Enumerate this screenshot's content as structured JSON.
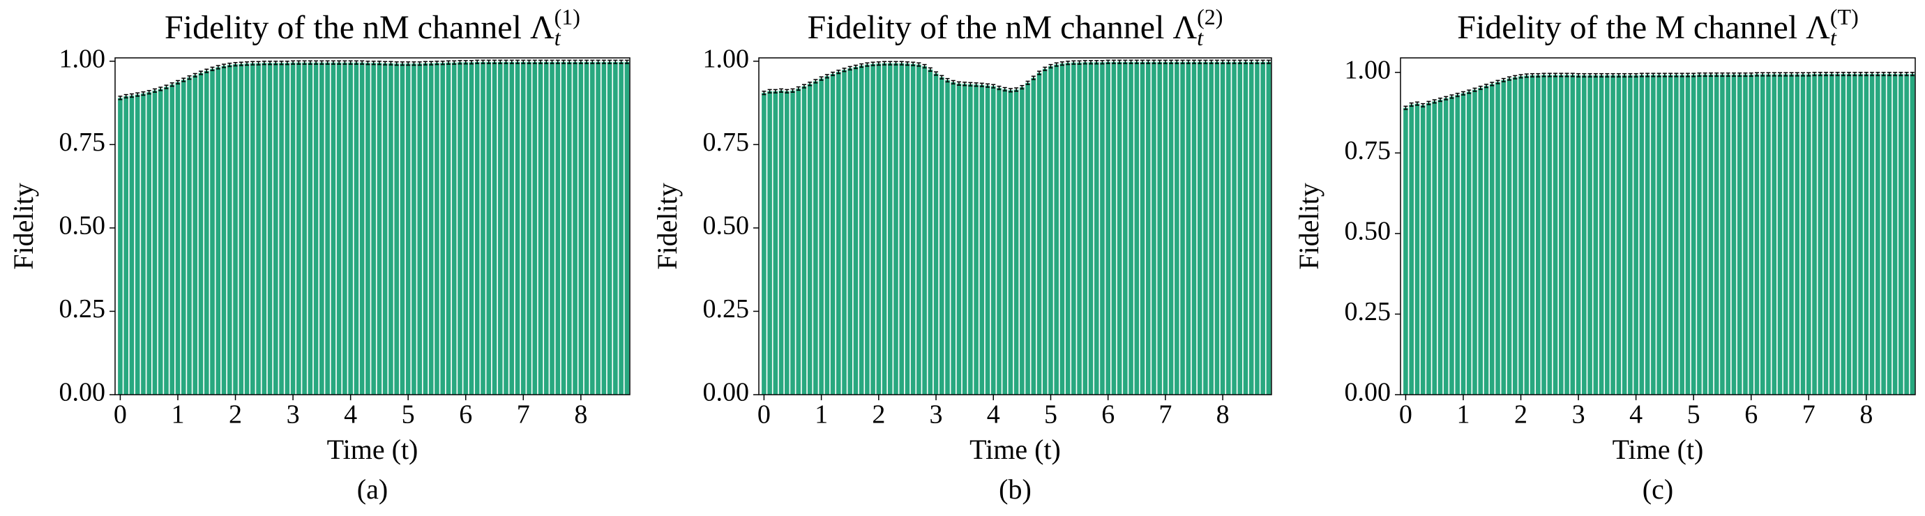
{
  "chart_data": [
    {
      "type": "bar",
      "title": "Fidelity of the nM channel ",
      "title_symbol": "Λ",
      "title_sub": "t",
      "title_sup": "(1)",
      "x_label": "Time (t)",
      "y_label": "Fidelity",
      "caption": "(a)",
      "color": "#28a87f",
      "error": 0.005,
      "xlim": [
        -0.09,
        8.85
      ],
      "xticks": [
        0,
        1,
        2,
        3,
        4,
        5,
        6,
        7,
        8
      ],
      "ylim": [
        0,
        1.01
      ],
      "yticks": [
        {
          "value": 0,
          "label": "0.00"
        },
        {
          "value": 0.25,
          "label": "0.25"
        },
        {
          "value": 0.5,
          "label": "0.50"
        },
        {
          "value": 0.75,
          "label": "0.75"
        },
        {
          "value": 1,
          "label": "1.00"
        }
      ],
      "x": [
        0,
        0.1,
        0.2,
        0.3,
        0.4,
        0.5,
        0.6,
        0.7,
        0.8,
        0.9,
        1,
        1.1,
        1.2,
        1.3,
        1.4,
        1.5,
        1.6,
        1.7,
        1.8,
        1.9,
        2,
        2.1,
        2.2,
        2.3,
        2.4,
        2.5,
        2.6,
        2.7,
        2.8,
        2.9,
        3,
        3.1,
        3.2,
        3.3,
        3.4,
        3.5,
        3.6,
        3.7,
        3.8,
        3.9,
        4,
        4.1,
        4.2,
        4.3,
        4.4,
        4.5,
        4.6,
        4.7,
        4.8,
        4.9,
        5,
        5.1,
        5.2,
        5.3,
        5.4,
        5.5,
        5.6,
        5.7,
        5.8,
        5.9,
        6,
        6.1,
        6.2,
        6.3,
        6.4,
        6.5,
        6.6,
        6.7,
        6.8,
        6.9,
        7,
        7.1,
        7.2,
        7.3,
        7.4,
        7.5,
        7.6,
        7.7,
        7.8,
        7.9,
        8,
        8.1,
        8.2,
        8.3,
        8.4,
        8.5,
        8.6,
        8.7,
        8.8
      ],
      "values": [
        0.89,
        0.895,
        0.897,
        0.9,
        0.903,
        0.907,
        0.912,
        0.917,
        0.923,
        0.93,
        0.937,
        0.944,
        0.951,
        0.958,
        0.965,
        0.971,
        0.977,
        0.982,
        0.986,
        0.989,
        0.991,
        0.992,
        0.993,
        0.994,
        0.994,
        0.995,
        0.995,
        0.995,
        0.995,
        0.995,
        0.996,
        0.996,
        0.996,
        0.996,
        0.996,
        0.996,
        0.996,
        0.996,
        0.996,
        0.996,
        0.996,
        0.996,
        0.996,
        0.995,
        0.995,
        0.995,
        0.994,
        0.994,
        0.993,
        0.993,
        0.993,
        0.993,
        0.993,
        0.994,
        0.994,
        0.995,
        0.995,
        0.996,
        0.996,
        0.997,
        0.997,
        0.997,
        0.998,
        0.998,
        0.998,
        0.998,
        0.998,
        0.998,
        0.998,
        0.998,
        0.998,
        0.998,
        0.998,
        0.998,
        0.998,
        0.998,
        0.998,
        0.998,
        0.998,
        0.998,
        0.998,
        0.998,
        0.998,
        0.998,
        0.998,
        0.998,
        0.998,
        0.998,
        0.998
      ]
    },
    {
      "type": "bar",
      "title": "Fidelity of the nM channel ",
      "title_symbol": "Λ",
      "title_sub": "t",
      "title_sup": "(2)",
      "x_label": "Time (t)",
      "y_label": "Fidelity",
      "caption": "(b)",
      "color": "#28a87f",
      "error": 0.005,
      "xlim": [
        -0.09,
        8.85
      ],
      "xticks": [
        0,
        1,
        2,
        3,
        4,
        5,
        6,
        7,
        8
      ],
      "ylim": [
        0,
        1.01
      ],
      "yticks": [
        {
          "value": 0,
          "label": "0.00"
        },
        {
          "value": 0.25,
          "label": "0.25"
        },
        {
          "value": 0.5,
          "label": "0.50"
        },
        {
          "value": 0.75,
          "label": "0.75"
        },
        {
          "value": 1,
          "label": "1.00"
        }
      ],
      "x": [
        0,
        0.1,
        0.2,
        0.3,
        0.4,
        0.5,
        0.6,
        0.7,
        0.8,
        0.9,
        1,
        1.1,
        1.2,
        1.3,
        1.4,
        1.5,
        1.6,
        1.7,
        1.8,
        1.9,
        2,
        2.1,
        2.2,
        2.3,
        2.4,
        2.5,
        2.6,
        2.7,
        2.8,
        2.9,
        3,
        3.1,
        3.2,
        3.3,
        3.4,
        3.5,
        3.6,
        3.7,
        3.8,
        3.9,
        4,
        4.1,
        4.2,
        4.3,
        4.4,
        4.5,
        4.6,
        4.7,
        4.8,
        4.9,
        5,
        5.1,
        5.2,
        5.3,
        5.4,
        5.5,
        5.6,
        5.7,
        5.8,
        5.9,
        6,
        6.1,
        6.2,
        6.3,
        6.4,
        6.5,
        6.6,
        6.7,
        6.8,
        6.9,
        7,
        7.1,
        7.2,
        7.3,
        7.4,
        7.5,
        7.6,
        7.7,
        7.8,
        7.9,
        8,
        8.1,
        8.2,
        8.3,
        8.4,
        8.5,
        8.6,
        8.7,
        8.8
      ],
      "values": [
        0.905,
        0.91,
        0.91,
        0.912,
        0.91,
        0.912,
        0.918,
        0.925,
        0.932,
        0.94,
        0.948,
        0.955,
        0.962,
        0.968,
        0.974,
        0.979,
        0.983,
        0.987,
        0.99,
        0.992,
        0.993,
        0.994,
        0.994,
        0.994,
        0.994,
        0.993,
        0.992,
        0.99,
        0.985,
        0.975,
        0.963,
        0.952,
        0.943,
        0.937,
        0.933,
        0.932,
        0.931,
        0.93,
        0.929,
        0.927,
        0.925,
        0.92,
        0.916,
        0.913,
        0.915,
        0.922,
        0.935,
        0.95,
        0.965,
        0.977,
        0.985,
        0.99,
        0.993,
        0.995,
        0.996,
        0.996,
        0.997,
        0.997,
        0.997,
        0.997,
        0.998,
        0.998,
        0.998,
        0.998,
        0.998,
        0.998,
        0.998,
        0.998,
        0.998,
        0.998,
        0.998,
        0.998,
        0.998,
        0.998,
        0.998,
        0.998,
        0.998,
        0.998,
        0.998,
        0.998,
        0.998,
        0.998,
        0.998,
        0.998,
        0.998,
        0.998,
        0.998,
        0.998,
        0.998
      ]
    },
    {
      "type": "bar",
      "title": "Fidelity of the M channel ",
      "title_symbol": "Λ",
      "title_sub": "t",
      "title_sup": "(T)",
      "x_label": "Time (t)",
      "y_label": "Fidelity",
      "caption": "(c)",
      "color": "#28a87f",
      "error": 0.005,
      "xlim": [
        -0.09,
        8.85
      ],
      "xticks": [
        0,
        1,
        2,
        3,
        4,
        5,
        6,
        7,
        8
      ],
      "ylim": [
        0,
        1.045
      ],
      "yticks": [
        {
          "value": 0,
          "label": "0.00"
        },
        {
          "value": 0.25,
          "label": "0.25"
        },
        {
          "value": 0.5,
          "label": "0.50"
        },
        {
          "value": 0.75,
          "label": "0.75"
        },
        {
          "value": 1,
          "label": "1.00"
        }
      ],
      "x": [
        0,
        0.1,
        0.2,
        0.3,
        0.4,
        0.5,
        0.6,
        0.7,
        0.8,
        0.9,
        1,
        1.1,
        1.2,
        1.3,
        1.4,
        1.5,
        1.6,
        1.7,
        1.8,
        1.9,
        2,
        2.1,
        2.2,
        2.3,
        2.4,
        2.5,
        2.6,
        2.7,
        2.8,
        2.9,
        3,
        3.1,
        3.2,
        3.3,
        3.4,
        3.5,
        3.6,
        3.7,
        3.8,
        3.9,
        4,
        4.1,
        4.2,
        4.3,
        4.4,
        4.5,
        4.6,
        4.7,
        4.8,
        4.9,
        5,
        5.1,
        5.2,
        5.3,
        5.4,
        5.5,
        5.6,
        5.7,
        5.8,
        5.9,
        6,
        6.1,
        6.2,
        6.3,
        6.4,
        6.5,
        6.6,
        6.7,
        6.8,
        6.9,
        7,
        7.1,
        7.2,
        7.3,
        7.4,
        7.5,
        7.6,
        7.7,
        7.8,
        7.9,
        8,
        8.1,
        8.2,
        8.3,
        8.4,
        8.5,
        8.6,
        8.7,
        8.8
      ],
      "values": [
        0.89,
        0.9,
        0.903,
        0.898,
        0.905,
        0.91,
        0.915,
        0.92,
        0.925,
        0.93,
        0.935,
        0.94,
        0.946,
        0.952,
        0.958,
        0.964,
        0.97,
        0.976,
        0.981,
        0.985,
        0.988,
        0.99,
        0.991,
        0.991,
        0.992,
        0.992,
        0.992,
        0.992,
        0.992,
        0.992,
        0.991,
        0.991,
        0.991,
        0.991,
        0.991,
        0.991,
        0.991,
        0.991,
        0.991,
        0.991,
        0.991,
        0.992,
        0.992,
        0.992,
        0.992,
        0.992,
        0.992,
        0.992,
        0.992,
        0.992,
        0.992,
        0.993,
        0.993,
        0.993,
        0.993,
        0.993,
        0.993,
        0.993,
        0.993,
        0.993,
        0.993,
        0.994,
        0.994,
        0.994,
        0.994,
        0.994,
        0.994,
        0.994,
        0.994,
        0.994,
        0.994,
        0.995,
        0.995,
        0.995,
        0.995,
        0.995,
        0.995,
        0.995,
        0.995,
        0.995,
        0.995,
        0.995,
        0.995,
        0.995,
        0.995,
        0.995,
        0.995,
        0.995,
        0.995
      ]
    }
  ]
}
